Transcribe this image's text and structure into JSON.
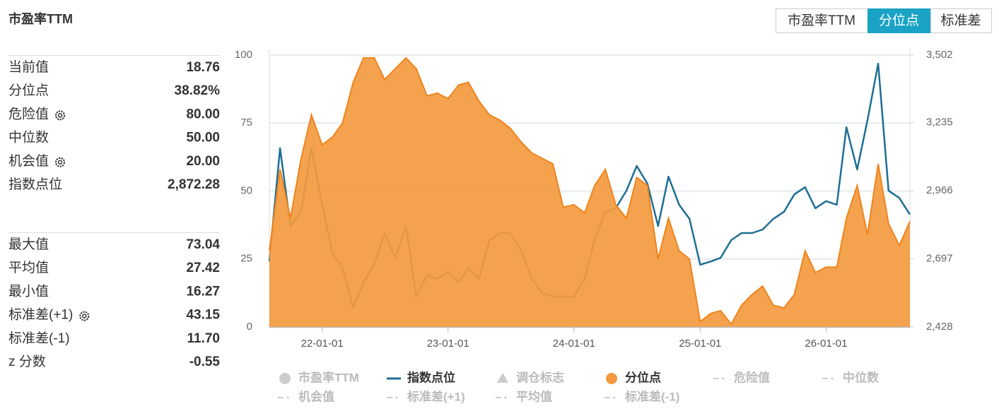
{
  "header": {
    "title": "市盈率TTM",
    "tabs": [
      "市盈率TTM",
      "分位点",
      "标准差"
    ],
    "active_tab": 1
  },
  "stats": [
    [
      {
        "label": "当前值",
        "value": "18.76"
      },
      {
        "label": "分位点",
        "value": "38.82%"
      },
      {
        "label": "危险值",
        "value": "80.00",
        "icon": "gear"
      },
      {
        "label": "中位数",
        "value": "50.00"
      },
      {
        "label": "机会值",
        "value": "20.00",
        "icon": "gear"
      },
      {
        "label": "指数点位",
        "value": "2,872.28"
      }
    ],
    [
      {
        "label": "最大值",
        "value": "73.04"
      },
      {
        "label": "平均值",
        "value": "27.42"
      },
      {
        "label": "最小值",
        "value": "16.27"
      },
      {
        "label": "标准差(+1)",
        "value": "43.15",
        "icon": "gear"
      },
      {
        "label": "标准差(-1)",
        "value": "11.70"
      },
      {
        "label": "z 分数",
        "value": "-0.55"
      }
    ]
  ],
  "chart_data": {
    "type": "line",
    "x": [
      "21-08-01",
      "21-09-01",
      "21-10-01",
      "21-11-01",
      "21-12-01",
      "22-01-01",
      "22-02-01",
      "22-03-01",
      "22-04-01",
      "22-05-01",
      "22-06-01",
      "22-07-01",
      "22-08-01",
      "22-09-01",
      "22-10-01",
      "22-11-01",
      "22-12-01",
      "23-01-01",
      "23-02-01",
      "23-03-01",
      "23-04-01",
      "23-05-01",
      "23-06-01",
      "23-07-01",
      "23-08-01",
      "23-09-01",
      "23-10-01",
      "23-11-01",
      "23-12-01",
      "24-01-01",
      "24-02-01",
      "24-03-01",
      "24-04-01",
      "24-05-01",
      "24-06-01",
      "24-07-01",
      "24-08-01",
      "24-09-01",
      "24-10-01",
      "24-11-01",
      "24-12-01",
      "25-01-01",
      "25-02-01",
      "25-03-01",
      "25-04-01",
      "25-05-01",
      "25-06-01",
      "25-07-01",
      "25-08-01",
      "25-09-01",
      "25-10-01",
      "25-11-01",
      "25-12-01",
      "26-01-01",
      "26-02-01",
      "26-03-01",
      "26-04-01",
      "26-05-01",
      "26-06-01",
      "26-07-01",
      "26-08-01",
      "26-09-01"
    ],
    "xlim": [
      "21-08-01",
      "26-09-01"
    ],
    "xticks": [
      "22-01-01",
      "23-01-01",
      "24-01-01",
      "25-01-01",
      "26-01-01"
    ],
    "ylim": [
      0,
      100
    ],
    "yticks": [
      0,
      25,
      50,
      75,
      100
    ],
    "y2lim": [
      2428,
      3502
    ],
    "y2ticks": [
      {
        "value": 2428,
        "label": "2,428"
      },
      {
        "value": 2697,
        "label": "2,697"
      },
      {
        "value": 2966,
        "label": "2,966"
      },
      {
        "value": 3235,
        "label": "3,235"
      },
      {
        "value": 3502,
        "label": "3,502"
      }
    ],
    "grid": true,
    "series": [
      {
        "name": "市盈率TTM",
        "marker": "circle",
        "color": "#cccccc",
        "visible": false
      },
      {
        "name": "指数点位",
        "marker": "line",
        "type": "line",
        "color": "#1e6e93",
        "axis": "y2",
        "visible": true,
        "values": [
          2687,
          3134,
          2827,
          2883,
          3134,
          2911,
          2715,
          2660,
          2506,
          2604,
          2674,
          2799,
          2701,
          2827,
          2548,
          2632,
          2618,
          2646,
          2604,
          2660,
          2618,
          2771,
          2799,
          2799,
          2729,
          2618,
          2562,
          2548,
          2548,
          2548,
          2618,
          2771,
          2883,
          2897,
          2966,
          3064,
          2994,
          2827,
          3022,
          2911,
          2855,
          2674,
          2687,
          2701,
          2771,
          2799,
          2799,
          2813,
          2855,
          2883,
          2952,
          2980,
          2897,
          2925,
          2911,
          3217,
          3050,
          3245,
          3468,
          2966,
          2938,
          2872.28
        ]
      },
      {
        "name": "调仓标志",
        "marker": "triangle",
        "color": "#cccccc",
        "visible": false
      },
      {
        "name": "分位点",
        "marker": "circle",
        "type": "area",
        "color": "#f39a3e",
        "visible": true,
        "values": [
          28,
          58,
          40,
          62,
          78,
          67,
          70,
          75,
          90,
          99,
          99,
          91,
          95,
          99,
          95,
          85,
          86,
          84,
          89,
          90,
          83,
          78,
          76,
          73,
          68,
          64,
          62,
          60,
          44,
          45,
          42,
          52,
          58,
          45,
          40,
          55,
          52,
          25,
          40,
          28,
          25,
          2,
          5,
          6,
          1,
          8,
          12,
          15,
          8,
          7,
          12,
          28,
          20,
          22,
          22,
          40,
          52,
          34,
          60,
          38,
          30,
          38.82
        ]
      },
      {
        "name": "危险值",
        "marker": "dash",
        "color": "#cccccc",
        "visible": false
      },
      {
        "name": "中位数",
        "marker": "dash",
        "color": "#cccccc",
        "visible": false
      },
      {
        "name": "机会值",
        "marker": "dash",
        "color": "#cccccc",
        "visible": false
      },
      {
        "name": "标准差(+1)",
        "marker": "dash",
        "color": "#cccccc",
        "visible": false
      },
      {
        "name": "平均值",
        "marker": "dash",
        "color": "#cccccc",
        "visible": false
      },
      {
        "name": "标准差(-1)",
        "marker": "dash",
        "color": "#cccccc",
        "visible": false
      }
    ]
  }
}
